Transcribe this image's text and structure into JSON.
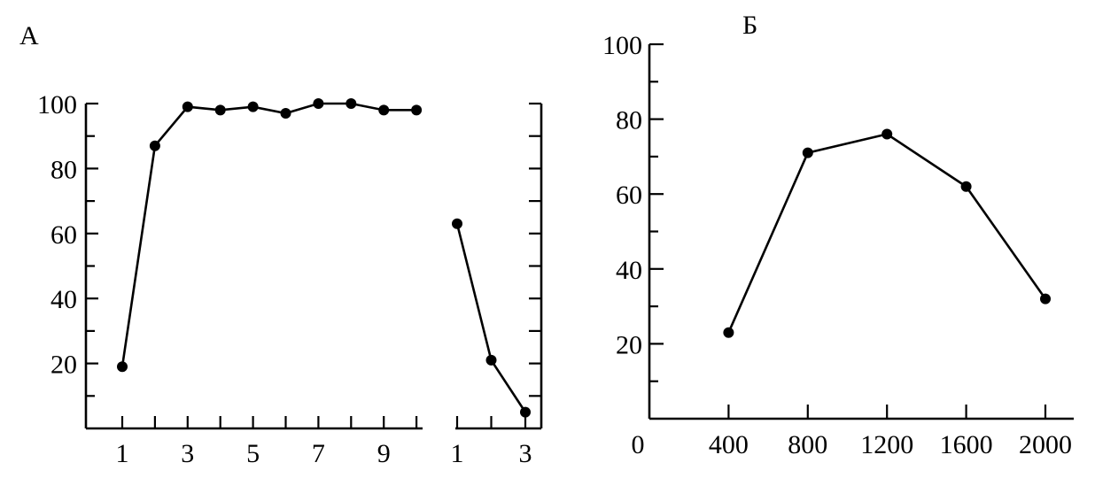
{
  "chart_data": [
    {
      "panel": "А",
      "type": "line",
      "ylim": [
        0,
        100
      ],
      "yticks": [
        20,
        40,
        60,
        80,
        100
      ],
      "segments": [
        {
          "x": [
            1,
            2,
            3,
            4,
            5,
            6,
            7,
            8,
            9,
            10
          ],
          "xtick_labels": [
            "1",
            "3",
            "5",
            "7",
            "9"
          ],
          "values": [
            19,
            87,
            99,
            98,
            99,
            97,
            100,
            100,
            98,
            98
          ]
        },
        {
          "x": [
            1,
            2,
            3
          ],
          "xtick_labels": [
            "1",
            "3"
          ],
          "values": [
            63,
            21,
            5
          ]
        }
      ]
    },
    {
      "panel": "Б",
      "type": "line",
      "x": [
        400,
        800,
        1200,
        1600,
        2000
      ],
      "xtick_labels": [
        "0",
        "400",
        "800",
        "1200",
        "1600",
        "2000"
      ],
      "values": [
        23,
        71,
        76,
        62,
        32
      ],
      "ylim": [
        0,
        100
      ],
      "yticks": [
        20,
        40,
        60,
        80,
        100
      ]
    }
  ]
}
